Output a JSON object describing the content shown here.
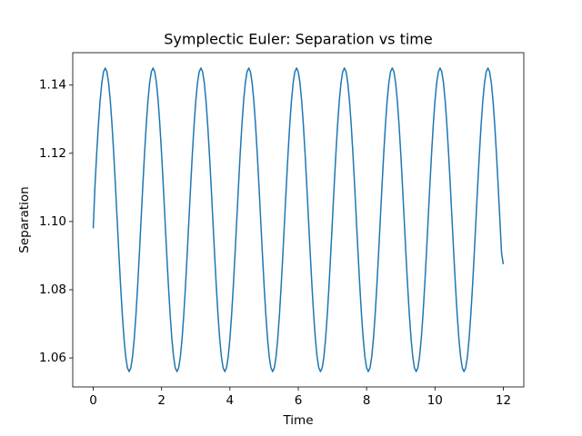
{
  "chart_data": {
    "type": "line",
    "title": "Symplectic Euler: Separation vs time",
    "xlabel": "Time",
    "ylabel": "Separation",
    "color": "#1f77b4",
    "grid": false,
    "xlim": [
      -0.6,
      12.6
    ],
    "ylim": [
      1.0515,
      1.1495
    ],
    "xticks": [
      0,
      2,
      4,
      6,
      8,
      10,
      12
    ],
    "yticks": [
      1.06,
      1.08,
      {
        "value": 1.1,
        "label": "1.10"
      },
      1.12,
      1.14
    ],
    "x": [
      0,
      0.05,
      0.1,
      0.15,
      0.2,
      0.25,
      0.3,
      0.35,
      0.4,
      0.45,
      0.5,
      0.55,
      0.6,
      0.65,
      0.7,
      0.75,
      0.8,
      0.85,
      0.9,
      0.95,
      1,
      1.05,
      1.1,
      1.15,
      1.2,
      1.25,
      1.3,
      1.35,
      1.4,
      1.45,
      1.5,
      1.55,
      1.6,
      1.65,
      1.7,
      1.75,
      1.8,
      1.85,
      1.9,
      1.95,
      2,
      2.05,
      2.1,
      2.15,
      2.2,
      2.25,
      2.3,
      2.35,
      2.4,
      2.45,
      2.5,
      2.55,
      2.6,
      2.65,
      2.7,
      2.75,
      2.8,
      2.85,
      2.9,
      2.95,
      3,
      3.05,
      3.1,
      3.15,
      3.2,
      3.25,
      3.3,
      3.35,
      3.4,
      3.45,
      3.5,
      3.55,
      3.6,
      3.65,
      3.7,
      3.75,
      3.8,
      3.85,
      3.9,
      3.95,
      4,
      4.05,
      4.1,
      4.15,
      4.2,
      4.25,
      4.3,
      4.35,
      4.4,
      4.45,
      4.5,
      4.55,
      4.6,
      4.65,
      4.7,
      4.75,
      4.8,
      4.85,
      4.9,
      4.95,
      5,
      5.05,
      5.1,
      5.15,
      5.2,
      5.25,
      5.3,
      5.35,
      5.4,
      5.45,
      5.5,
      5.55,
      5.6,
      5.65,
      5.7,
      5.75,
      5.8,
      5.85,
      5.9,
      5.95,
      6,
      6.05,
      6.1,
      6.15,
      6.2,
      6.25,
      6.3,
      6.35,
      6.4,
      6.45,
      6.5,
      6.55,
      6.6,
      6.65,
      6.7,
      6.75,
      6.8,
      6.85,
      6.9,
      6.95,
      7,
      7.05,
      7.1,
      7.15,
      7.2,
      7.25,
      7.3,
      7.35,
      7.4,
      7.45,
      7.5,
      7.55,
      7.6,
      7.65,
      7.7,
      7.75,
      7.8,
      7.85,
      7.9,
      7.95,
      8,
      8.05,
      8.1,
      8.15,
      8.2,
      8.25,
      8.3,
      8.35,
      8.4,
      8.45,
      8.5,
      8.55,
      8.6,
      8.65,
      8.7,
      8.75,
      8.8,
      8.85,
      8.9,
      8.95,
      9,
      9.05,
      9.1,
      9.15,
      9.2,
      9.25,
      9.3,
      9.35,
      9.4,
      9.45,
      9.5,
      9.55,
      9.6,
      9.65,
      9.7,
      9.75,
      9.8,
      9.85,
      9.9,
      9.95,
      10,
      10.05,
      10.1,
      10.15,
      10.2,
      10.25,
      10.3,
      10.35,
      10.4,
      10.45,
      10.5,
      10.55,
      10.6,
      10.65,
      10.7,
      10.75,
      10.8,
      10.85,
      10.9,
      10.95,
      11,
      11.05,
      11.1,
      11.15,
      11.2,
      11.25,
      11.3,
      11.35,
      11.4,
      11.45,
      11.5,
      11.55,
      11.6,
      11.65,
      11.7,
      11.75,
      11.8,
      11.85,
      11.9,
      11.95,
      12
    ],
    "values": [
      1.098,
      1.1104,
      1.1198,
      1.1282,
      1.1353,
      1.1406,
      1.1439,
      1.145,
      1.1439,
      1.1406,
      1.1353,
      1.1282,
      1.1198,
      1.1104,
      1.1005,
      1.0906,
      1.0812,
      1.0728,
      1.0657,
      1.0604,
      1.0571,
      1.056,
      1.0571,
      1.0604,
      1.0657,
      1.0728,
      1.0812,
      1.0906,
      1.1005,
      1.1104,
      1.1198,
      1.1282,
      1.1353,
      1.1406,
      1.1439,
      1.145,
      1.1439,
      1.1406,
      1.1353,
      1.1282,
      1.1198,
      1.1104,
      1.1005,
      1.0906,
      1.0812,
      1.0728,
      1.0657,
      1.0604,
      1.0571,
      1.056,
      1.0571,
      1.0604,
      1.0657,
      1.0728,
      1.0812,
      1.0906,
      1.1005,
      1.1104,
      1.1198,
      1.1282,
      1.1353,
      1.1406,
      1.1439,
      1.145,
      1.1439,
      1.1406,
      1.1353,
      1.1282,
      1.1198,
      1.1104,
      1.1005,
      1.0906,
      1.0812,
      1.0728,
      1.0657,
      1.0604,
      1.0571,
      1.056,
      1.0571,
      1.0604,
      1.0657,
      1.0728,
      1.0812,
      1.0906,
      1.1005,
      1.1104,
      1.1198,
      1.1282,
      1.1353,
      1.1406,
      1.1439,
      1.145,
      1.1439,
      1.1406,
      1.1353,
      1.1282,
      1.1198,
      1.1104,
      1.1005,
      1.0906,
      1.0812,
      1.0728,
      1.0657,
      1.0604,
      1.0571,
      1.056,
      1.0571,
      1.0604,
      1.0657,
      1.0728,
      1.0812,
      1.0906,
      1.1005,
      1.1104,
      1.1198,
      1.1282,
      1.1353,
      1.1406,
      1.1439,
      1.145,
      1.1439,
      1.1406,
      1.1353,
      1.1282,
      1.1198,
      1.1104,
      1.1005,
      1.0906,
      1.0812,
      1.0728,
      1.0657,
      1.0604,
      1.0571,
      1.056,
      1.0571,
      1.0604,
      1.0657,
      1.0728,
      1.0812,
      1.0906,
      1.1005,
      1.1104,
      1.1198,
      1.1282,
      1.1353,
      1.1406,
      1.1439,
      1.145,
      1.1439,
      1.1406,
      1.1353,
      1.1282,
      1.1198,
      1.1104,
      1.1005,
      1.0906,
      1.0812,
      1.0728,
      1.0657,
      1.0604,
      1.0571,
      1.056,
      1.0571,
      1.0604,
      1.0657,
      1.0728,
      1.0812,
      1.0906,
      1.1005,
      1.1104,
      1.1198,
      1.1282,
      1.1353,
      1.1406,
      1.1439,
      1.145,
      1.1439,
      1.1406,
      1.1353,
      1.1282,
      1.1198,
      1.1104,
      1.1005,
      1.0906,
      1.0812,
      1.0728,
      1.0657,
      1.0604,
      1.0571,
      1.056,
      1.0571,
      1.0604,
      1.0657,
      1.0728,
      1.0812,
      1.0906,
      1.1005,
      1.1104,
      1.1198,
      1.1282,
      1.1353,
      1.1406,
      1.1439,
      1.145,
      1.1439,
      1.1406,
      1.1353,
      1.1282,
      1.1198,
      1.1104,
      1.1005,
      1.0906,
      1.0812,
      1.0728,
      1.0657,
      1.0604,
      1.0571,
      1.056,
      1.0571,
      1.0604,
      1.0657,
      1.0728,
      1.0812,
      1.0906,
      1.1005,
      1.1104,
      1.1198,
      1.1282,
      1.1353,
      1.1406,
      1.1439,
      1.145,
      1.1439,
      1.1406,
      1.1353,
      1.1282,
      1.1198,
      1.1104,
      1.1005,
      1.0906,
      1.0875
    ]
  }
}
